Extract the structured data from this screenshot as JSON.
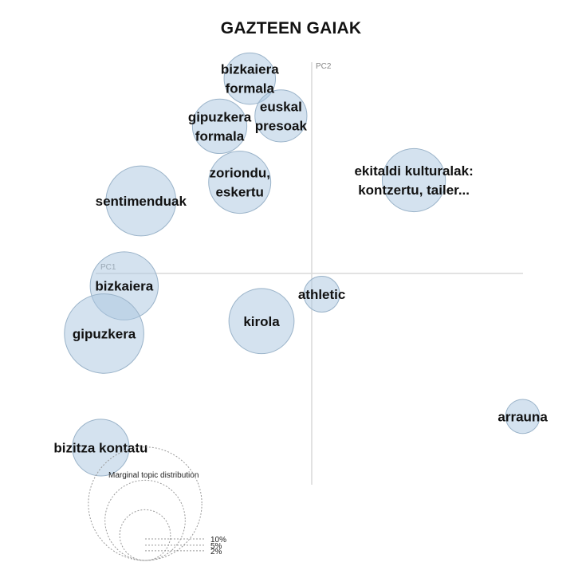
{
  "chart_data": {
    "type": "scatter",
    "title": "GAZTEEN GAIAK",
    "xlabel": "PC1",
    "ylabel": "PC2",
    "grid": false,
    "topics": [
      {
        "name": "bizkaiera formala",
        "lines": [
          "bizkaiera",
          "formala"
        ],
        "pc1": -0.185,
        "pc2": 0.47,
        "share": 2.05
      },
      {
        "name": "euskal presoak",
        "lines": [
          "euskal",
          "presoak"
        ],
        "pc1": -0.092,
        "pc2": 0.38,
        "share": 2.1
      },
      {
        "name": "gipuzkera formala",
        "lines": [
          "gipuzkera",
          "formala"
        ],
        "pc1": -0.275,
        "pc2": 0.355,
        "share": 2.3
      },
      {
        "name": "zoriondu, eskertu",
        "lines": [
          "zoriondu,",
          "eskertu"
        ],
        "pc1": -0.215,
        "pc2": 0.22,
        "share": 3.0
      },
      {
        "name": "sentimenduak",
        "lines": [
          "sentimenduak"
        ],
        "pc1": -0.51,
        "pc2": 0.175,
        "share": 3.8
      },
      {
        "name": "ekitaldi kulturalak: kontzertu, tailer...",
        "lines": [
          "ekitaldi kulturalak:",
          "kontzertu, tailer..."
        ],
        "pc1": 0.305,
        "pc2": 0.225,
        "share": 3.1
      },
      {
        "name": "bizkaiera",
        "lines": [
          "bizkaiera"
        ],
        "pc1": -0.56,
        "pc2": -0.03,
        "share": 3.6
      },
      {
        "name": "athletic",
        "lines": [
          "athletic"
        ],
        "pc1": 0.03,
        "pc2": -0.05,
        "share": 1.0
      },
      {
        "name": "kirola",
        "lines": [
          "kirola"
        ],
        "pc1": -0.15,
        "pc2": -0.115,
        "share": 3.3
      },
      {
        "name": "gipuzkera",
        "lines": [
          "gipuzkera"
        ],
        "pc1": -0.62,
        "pc2": -0.145,
        "share": 4.9
      },
      {
        "name": "arrauna",
        "lines": [
          "arrauna"
        ],
        "pc1": 0.63,
        "pc2": -0.345,
        "share": 0.9
      },
      {
        "name": "bizitza kontatu",
        "lines": [
          "bizitza kontatu"
        ],
        "pc1": -0.63,
        "pc2": -0.42,
        "share": 2.5
      }
    ],
    "legend": {
      "title": "Marginal topic distribution",
      "items": [
        {
          "label": "2%",
          "share": 2
        },
        {
          "label": "5%",
          "share": 5
        },
        {
          "label": "10%",
          "share": 10
        }
      ]
    }
  }
}
